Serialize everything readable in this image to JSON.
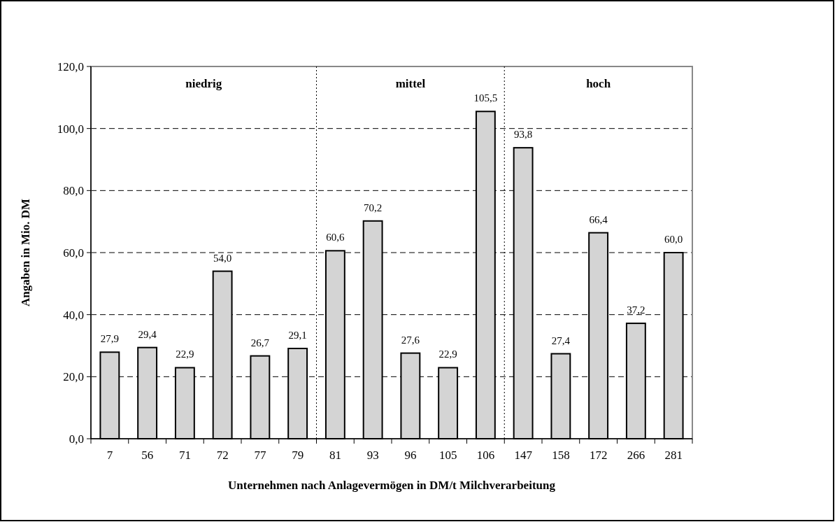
{
  "chart_data": {
    "type": "bar",
    "xlabel": "Unternehmen nach Anlagevermögen in DM/t Milchverarbeitung",
    "ylabel": "Angaben in Mio. DM",
    "categories": [
      "7",
      "56",
      "71",
      "72",
      "77",
      "79",
      "81",
      "93",
      "96",
      "105",
      "106",
      "147",
      "158",
      "172",
      "266",
      "281"
    ],
    "values": [
      27.9,
      29.4,
      22.9,
      54.0,
      26.7,
      29.1,
      60.6,
      70.2,
      27.6,
      22.9,
      105.5,
      93.8,
      27.4,
      66.4,
      37.2,
      60.0
    ],
    "value_labels": [
      "27,9",
      "29,4",
      "22,9",
      "54,0",
      "26,7",
      "29,1",
      "60,6",
      "70,2",
      "27,6",
      "22,9",
      "105,5",
      "93,8",
      "27,4",
      "66,4",
      "37,2",
      "60,0"
    ],
    "color": "#d4d4d4",
    "ylim": [
      0,
      120
    ],
    "yticks": [
      {
        "value": 0,
        "label": "0,0"
      },
      {
        "value": 20,
        "label": "20,0"
      },
      {
        "value": 40,
        "label": "40,0"
      },
      {
        "value": 60,
        "label": "60,0"
      },
      {
        "value": 80,
        "label": "80,0"
      },
      {
        "value": 100,
        "label": "100,0"
      },
      {
        "value": 120,
        "label": "120,0"
      }
    ],
    "grid": "y",
    "annotations": [
      "niedrig",
      "mittel",
      "hoch"
    ]
  }
}
